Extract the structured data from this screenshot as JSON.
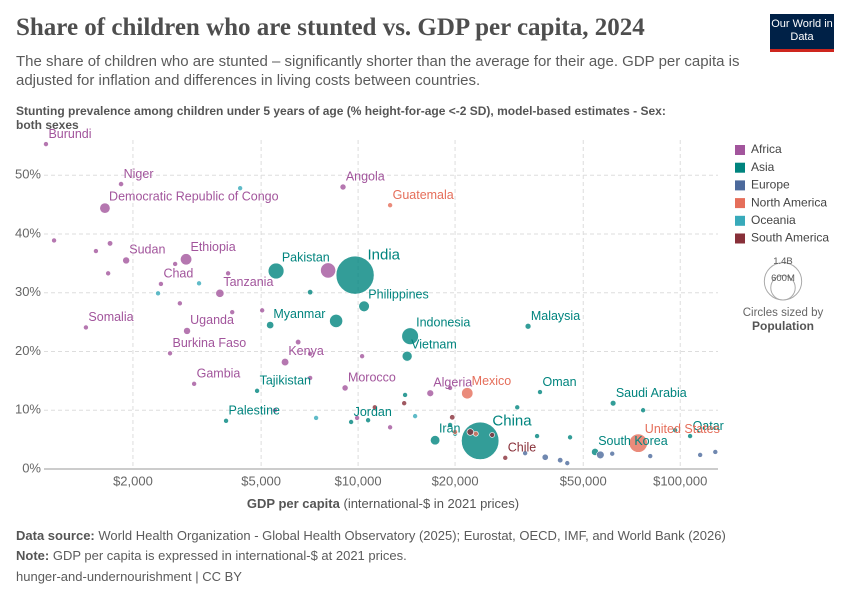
{
  "chart_data": {
    "type": "scatter",
    "title": "Share of children who are stunted vs. GDP per capita, 2024",
    "subtitle": "The share of children who are stunted – significantly shorter than the average for their age. GDP per capita is adjusted for inflation and differences in living costs between countries.",
    "logo": "Our World in Data",
    "y_axis_label": "Stunting prevalence among children under 5 years of age (% height-for-age <-2 SD), model-based estimates - Sex: both sexes",
    "x_axis_label": "GDP per capita",
    "x_axis_unit": "(international-$ in 2021 prices)",
    "x_scale": "log",
    "grid": true,
    "legend": "right",
    "xlim": [
      1059,
      131000
    ],
    "ylim": [
      0,
      56
    ],
    "xticks": [
      {
        "value": 2000,
        "label": "$2,000"
      },
      {
        "value": 5000,
        "label": "$5,000"
      },
      {
        "value": 10000,
        "label": "$10,000"
      },
      {
        "value": 20000,
        "label": "$20,000"
      },
      {
        "value": 50000,
        "label": "$50,000"
      },
      {
        "value": 100000,
        "label": "$100,000"
      }
    ],
    "yticks": [
      {
        "value": 0,
        "label": "0%"
      },
      {
        "value": 10,
        "label": "10%"
      },
      {
        "value": 20,
        "label": "20%"
      },
      {
        "value": 30,
        "label": "30%"
      },
      {
        "value": 40,
        "label": "40%"
      },
      {
        "value": 50,
        "label": "50%"
      }
    ],
    "size_legend_title": "Circles sized by",
    "size_legend_variable": "Population",
    "size_legend": [
      {
        "value": 1400000000,
        "label": "1.4B"
      },
      {
        "value": 600000000,
        "label": "600M"
      }
    ],
    "series": [
      {
        "name": "Africa",
        "color": "#a2559c",
        "labels": [
          "Burundi",
          "Niger",
          "Democratic Republic of Congo",
          "Angola",
          "Sudan",
          "Ethiopia",
          "Chad",
          "Tanzania",
          "Somalia",
          "Uganda",
          "Burkina Faso",
          "Kenya",
          "Gambia",
          "Morocco",
          "Algeria",
          null,
          null,
          null,
          null,
          null,
          null,
          null,
          null,
          null,
          null,
          null,
          null,
          null,
          null,
          null,
          null,
          null,
          null
        ],
        "x": [
          1074,
          1837,
          1637,
          8977,
          1905,
          2924,
          2443,
          3723,
          1429,
          2944,
          2607,
          5933,
          3097,
          9112,
          16750,
          8070,
          1138,
          1535,
          1698,
          1675,
          2704,
          3948,
          2797,
          5037,
          4066,
          6514,
          7098,
          9928,
          10290,
          7098,
          5519,
          19300,
          12570
        ],
        "values": [
          55.3,
          48.5,
          44.4,
          48.0,
          35.5,
          35.7,
          31.5,
          29.9,
          24.1,
          23.5,
          19.7,
          18.2,
          14.5,
          13.8,
          12.9,
          33.8,
          38.9,
          37.1,
          38.4,
          33.3,
          34.9,
          33.3,
          28.2,
          27.0,
          26.7,
          21.6,
          19.6,
          8.7,
          19.2,
          15.5,
          10.0,
          13.8,
          7.1
        ],
        "sizes": [
          14000000,
          27000000,
          109000000,
          37000000,
          50000000,
          130000000,
          20000000,
          69000000,
          19000000,
          50000000,
          24000000,
          57000000,
          3000000,
          38000000,
          47000000,
          230000000,
          12000000,
          5000000,
          30000000,
          6000000,
          3000000,
          15000000,
          5000000,
          3000000,
          8000000,
          30000000,
          4000000,
          3000000,
          3000000,
          17000000,
          2000000,
          2000000,
          12000000
        ]
      },
      {
        "name": "Asia",
        "color": "#00847e",
        "labels": [
          "India",
          "Pakistan",
          "Philippines",
          "Indonesia",
          "Vietnam",
          "Myanmar",
          "Malaysia",
          "Tajikistan",
          "Jordan",
          "Iran",
          "China",
          "Oman",
          "Saudi Arabia",
          "Qatar",
          "South Korea",
          "Palestine",
          null,
          null,
          null,
          null,
          null,
          null,
          null,
          null,
          null,
          null,
          null
        ],
        "x": [
          9788,
          5564,
          10436,
          14504,
          14200,
          5333,
          33700,
          4857,
          9512,
          17340,
          23930,
          36700,
          61900,
          107300,
          54400,
          3891,
          8545,
          7098,
          10740,
          19300,
          13990,
          31190,
          35940,
          45500,
          76700,
          96400,
          20000
        ],
        "values": [
          33.0,
          33.7,
          27.7,
          22.6,
          19.2,
          24.5,
          24.3,
          13.3,
          8.0,
          4.9,
          4.8,
          13.1,
          11.2,
          5.6,
          2.9,
          8.2,
          25.2,
          30.1,
          8.3,
          7.5,
          12.6,
          10.5,
          5.6,
          5.4,
          10.0,
          6.6,
          6.0
        ],
        "sizes": [
          1450000000,
          250000000,
          115000000,
          280000000,
          100000000,
          54000000,
          35000000,
          10000000,
          11000000,
          90000000,
          1410000000,
          5000000,
          33000000,
          3000000,
          52000000,
          5000000,
          173000000,
          30000000,
          8000000,
          4000000,
          20000000,
          5000000,
          20000000,
          10000000,
          5000000,
          6000000,
          3000000
        ]
      },
      {
        "name": "Europe",
        "color": "#4c6a9c",
        "labels": [
          null,
          null,
          null,
          null,
          null,
          null,
          null,
          null,
          null
        ],
        "x": [
          42400,
          44600,
          56500,
          38100,
          61500,
          80700,
          115300,
          128500,
          33000
        ],
        "values": [
          1.5,
          1.0,
          2.4,
          2.0,
          2.6,
          2.2,
          2.4,
          2.9,
          2.7
        ],
        "sizes": [
          30000000,
          10000000,
          60000000,
          40000000,
          10000000,
          8000000,
          5000000,
          1000000,
          20000000
        ]
      },
      {
        "name": "North America",
        "color": "#e56e5a",
        "labels": [
          "Guatemala",
          "Mexico",
          "United States",
          null,
          null
        ],
        "x": [
          12570,
          21820,
          74100,
          23200,
          20000
        ],
        "values": [
          44.9,
          12.9,
          4.4,
          6.0,
          6.3
        ],
        "sizes": [
          18000000,
          130000000,
          340000000,
          3000000,
          5000000
        ]
      },
      {
        "name": "Oceania",
        "color": "#38aaba",
        "labels": [
          null,
          null,
          null,
          null,
          null
        ],
        "x": [
          4303,
          2393,
          3208,
          7406,
          15030
        ],
        "values": [
          47.8,
          29.9,
          31.6,
          8.7,
          9.0
        ],
        "sizes": [
          10000000,
          1000000,
          1000000,
          1000000,
          1000000
        ]
      },
      {
        "name": "South America",
        "color": "#883039",
        "labels": [
          "Chile",
          null,
          null,
          null,
          null,
          null
        ],
        "x": [
          28630,
          19600,
          13900,
          22300,
          26070,
          11270
        ],
        "values": [
          1.9,
          8.8,
          11.2,
          6.3,
          5.8,
          10.5
        ],
        "sizes": [
          20000000,
          30000000,
          12000000,
          45000000,
          20000000,
          4000000
        ]
      }
    ],
    "source_label": "Data source:",
    "source": "World Health Organization - Global Health Observatory (2025); Eurostat, OECD, IMF, and World Bank (2026)",
    "note_label": "Note:",
    "note": "GDP per capita is expressed in international-$ at 2021 prices.",
    "footer": "hunger-and-undernourishment | CC BY"
  }
}
